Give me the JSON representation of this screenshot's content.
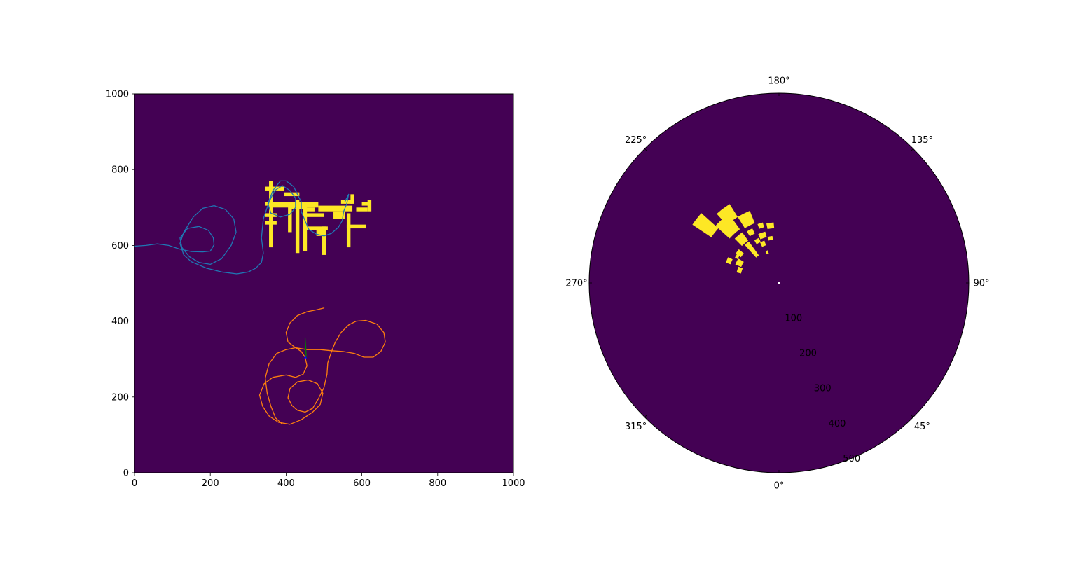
{
  "figure": {
    "background": "#ffffff",
    "map_color": "#440154",
    "obstacle_color": "#fde725"
  },
  "chart_data": [
    {
      "type": "heatmap",
      "name": "map-view",
      "xlim": [
        0,
        1000
      ],
      "ylim": [
        0,
        1000
      ],
      "xticks": [
        0,
        200,
        400,
        600,
        800,
        1000
      ],
      "yticks": [
        0,
        200,
        400,
        600,
        800,
        1000
      ],
      "xtick_labels": [
        "0",
        "200",
        "400",
        "600",
        "800",
        "1000"
      ],
      "ytick_labels": [
        "0",
        "200",
        "400",
        "600",
        "800",
        "1000"
      ],
      "background_color": "#440154",
      "obstacle_color": "#fde725",
      "obstacles": [
        [
          355,
          595,
          10,
          175
        ],
        [
          345,
          745,
          50,
          10
        ],
        [
          345,
          705,
          30,
          10
        ],
        [
          345,
          675,
          30,
          10
        ],
        [
          345,
          655,
          30,
          10
        ],
        [
          360,
          700,
          125,
          15
        ],
        [
          395,
          730,
          40,
          10
        ],
        [
          405,
          635,
          10,
          80
        ],
        [
          425,
          580,
          10,
          140
        ],
        [
          415,
          695,
          30,
          10
        ],
        [
          445,
          585,
          10,
          120
        ],
        [
          445,
          690,
          30,
          10
        ],
        [
          450,
          675,
          50,
          10
        ],
        [
          450,
          640,
          60,
          10
        ],
        [
          480,
          625,
          20,
          20
        ],
        [
          495,
          575,
          10,
          75
        ],
        [
          485,
          690,
          90,
          15
        ],
        [
          525,
          670,
          30,
          20
        ],
        [
          545,
          710,
          30,
          10
        ],
        [
          560,
          595,
          10,
          90
        ],
        [
          560,
          645,
          50,
          10
        ],
        [
          570,
          710,
          10,
          25
        ],
        [
          585,
          690,
          30,
          10
        ],
        [
          600,
          705,
          20,
          10
        ],
        [
          615,
          690,
          10,
          30
        ]
      ],
      "series": [
        {
          "name": "",
          "color": "#1f77b4",
          "points": [
            [
              0,
              598
            ],
            [
              30,
              600
            ],
            [
              60,
              604
            ],
            [
              90,
              600
            ],
            [
              120,
              590
            ],
            [
              150,
              584
            ],
            [
              180,
              583
            ],
            [
              200,
              585
            ],
            [
              210,
              602
            ],
            [
              208,
              620
            ],
            [
              195,
              640
            ],
            [
              170,
              650
            ],
            [
              140,
              645
            ],
            [
              120,
              620
            ],
            [
              125,
              595
            ],
            [
              145,
              570
            ],
            [
              170,
              555
            ],
            [
              200,
              550
            ],
            [
              230,
              565
            ],
            [
              255,
              600
            ],
            [
              268,
              635
            ],
            [
              262,
              670
            ],
            [
              240,
              695
            ],
            [
              210,
              705
            ],
            [
              180,
              698
            ],
            [
              155,
              675
            ],
            [
              130,
              635
            ],
            [
              120,
              605
            ],
            [
              130,
              575
            ],
            [
              150,
              557
            ],
            [
              190,
              540
            ],
            [
              230,
              530
            ],
            [
              270,
              525
            ],
            [
              300,
              530
            ],
            [
              320,
              540
            ],
            [
              335,
              555
            ],
            [
              340,
              580
            ],
            [
              335,
              620
            ],
            [
              340,
              670
            ],
            [
              355,
              715
            ],
            [
              370,
              745
            ],
            [
              390,
              758
            ],
            [
              410,
              745
            ],
            [
              425,
              725
            ],
            [
              425,
              700
            ],
            [
              410,
              682
            ],
            [
              385,
              675
            ],
            [
              360,
              685
            ],
            [
              352,
              710
            ],
            [
              365,
              745
            ],
            [
              385,
              770
            ],
            [
              400,
              770
            ],
            [
              420,
              755
            ],
            [
              430,
              735
            ],
            [
              440,
              715
            ],
            [
              440,
              690
            ],
            [
              450,
              665
            ],
            [
              460,
              642
            ],
            [
              480,
              630
            ],
            [
              500,
              625
            ],
            [
              520,
              632
            ],
            [
              538,
              648
            ],
            [
              548,
              665
            ],
            [
              552,
              690
            ],
            [
              560,
              710
            ],
            [
              565,
              735
            ],
            [
              555,
              715
            ]
          ]
        },
        {
          "name": "",
          "color": "#ff7f0e",
          "points": [
            [
              500,
              435
            ],
            [
              480,
              430
            ],
            [
              455,
              425
            ],
            [
              430,
              415
            ],
            [
              410,
              395
            ],
            [
              400,
              370
            ],
            [
              405,
              345
            ],
            [
              425,
              330
            ],
            [
              455,
              325
            ],
            [
              490,
              325
            ],
            [
              520,
              322
            ],
            [
              550,
              320
            ],
            [
              580,
              315
            ],
            [
              605,
              305
            ],
            [
              630,
              305
            ],
            [
              650,
              320
            ],
            [
              662,
              345
            ],
            [
              658,
              370
            ],
            [
              640,
              392
            ],
            [
              610,
              402
            ],
            [
              585,
              400
            ],
            [
              565,
              390
            ],
            [
              545,
              370
            ],
            [
              530,
              345
            ],
            [
              520,
              320
            ],
            [
              510,
              290
            ],
            [
              508,
              260
            ],
            [
              500,
              225
            ],
            [
              485,
              195
            ],
            [
              470,
              170
            ],
            [
              450,
              160
            ],
            [
              430,
              165
            ],
            [
              415,
              178
            ],
            [
              405,
              198
            ],
            [
              410,
              222
            ],
            [
              430,
              240
            ],
            [
              458,
              245
            ],
            [
              483,
              235
            ],
            [
              497,
              210
            ],
            [
              490,
              180
            ],
            [
              470,
              160
            ],
            [
              440,
              140
            ],
            [
              410,
              128
            ],
            [
              380,
              133
            ],
            [
              355,
              150
            ],
            [
              338,
              175
            ],
            [
              330,
              205
            ],
            [
              342,
              235
            ],
            [
              365,
              252
            ],
            [
              400,
              258
            ],
            [
              425,
              252
            ],
            [
              445,
              260
            ],
            [
              455,
              282
            ],
            [
              450,
              305
            ],
            [
              440,
              320
            ],
            [
              425,
              330
            ],
            [
              400,
              325
            ],
            [
              375,
              315
            ],
            [
              355,
              288
            ],
            [
              345,
              250
            ],
            [
              350,
              210
            ],
            [
              360,
              175
            ],
            [
              372,
              145
            ],
            [
              388,
              130
            ]
          ]
        },
        {
          "name": "",
          "color": "#008000",
          "points": [
            [
              450,
              355
            ],
            [
              452,
              330
            ],
            [
              453,
              303
            ]
          ]
        },
        {
          "name": "",
          "color": "#0000ff",
          "points": [
            [
              449,
              302
            ],
            [
              451,
              308
            ],
            [
              453,
              302
            ]
          ]
        }
      ]
    },
    {
      "type": "heatmap",
      "name": "polar-view",
      "projection": "polar",
      "theta_zero_location": "bottom",
      "theta_direction": "counterclockwise",
      "rlim": [
        0,
        500
      ],
      "rticks": [
        100,
        200,
        300,
        400,
        500
      ],
      "rtick_labels": [
        "100",
        "200",
        "300",
        "400",
        "500"
      ],
      "theta_ticks_deg": [
        0,
        45,
        90,
        135,
        180,
        225,
        270,
        315
      ],
      "theta_tick_labels": [
        "0°",
        "45°",
        "90°",
        "135°",
        "180°",
        "225°",
        "270°",
        "315°"
      ],
      "background_color": "#440154",
      "obstacle_color": "#fde725",
      "sectors": [
        [
          228,
          236,
          215,
          275
        ],
        [
          212,
          222,
          205,
          245
        ],
        [
          216,
          222,
          90,
          135
        ],
        [
          216,
          225,
          138,
          165
        ],
        [
          216,
          228,
          175,
          225
        ],
        [
          202,
          212,
          170,
          205
        ],
        [
          206,
          212,
          145,
          160
        ],
        [
          204,
          210,
          118,
          130
        ],
        [
          199,
          205,
          105,
          118
        ],
        [
          199,
          203,
          82,
          91
        ],
        [
          195,
          203,
          125,
          140
        ],
        [
          195,
          200,
          152,
          165
        ],
        [
          188,
          194,
          115,
          125
        ],
        [
          185,
          192,
          145,
          160
        ],
        [
          248,
          256,
          103,
          115
        ],
        [
          239,
          247,
          108,
          125
        ],
        [
          243,
          249,
          137,
          150
        ],
        [
          230,
          236,
          121,
          138
        ],
        [
          234,
          240,
          126,
          134
        ]
      ],
      "marker": [
        0,
        0
      ]
    }
  ]
}
